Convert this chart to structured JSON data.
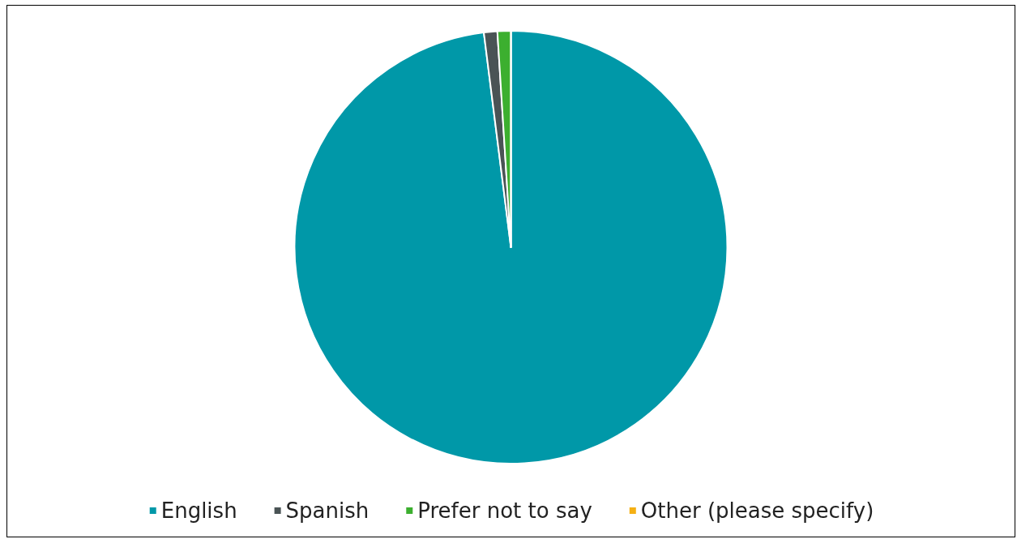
{
  "chart_data": {
    "type": "pie",
    "categories": [
      "English",
      "Spanish",
      "Prefer not to say",
      "Other (please specify)"
    ],
    "values": [
      98,
      1,
      1,
      0
    ],
    "colors": [
      "#0098a8",
      "#4a5355",
      "#3caf2f",
      "#f5b014"
    ],
    "legend": "bottom"
  }
}
